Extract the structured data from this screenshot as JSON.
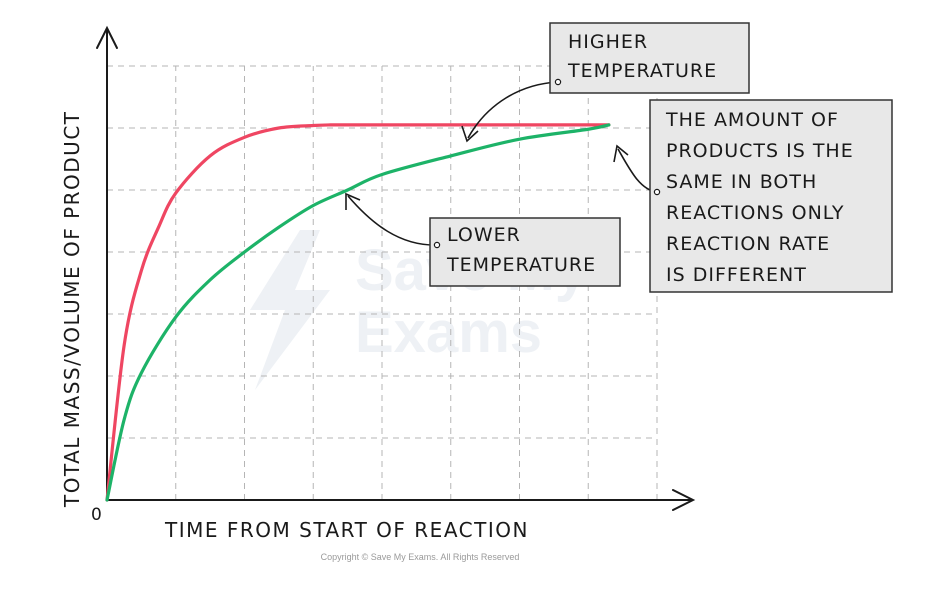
{
  "chart_data": {
    "type": "line",
    "title": "",
    "xlabel": "TIME FROM START OF REACTION",
    "ylabel": "TOTAL MASS/VOLUME OF PRODUCT",
    "origin_label": "0",
    "xlim": [
      0,
      8
    ],
    "ylim": [
      0,
      7
    ],
    "grid": true,
    "series": [
      {
        "color": "#ef4662",
        "x": [
          0,
          0.25,
          0.5,
          0.75,
          1,
          1.5,
          2,
          2.5,
          3,
          3.25,
          3.5,
          4,
          5,
          6,
          7.3
        ],
        "y": [
          0,
          2.5,
          3.7,
          4.4,
          4.95,
          5.55,
          5.85,
          6.0,
          6.04,
          6.05,
          6.05,
          6.05,
          6.05,
          6.05,
          6.05
        ]
      },
      {
        "color": "#1db368",
        "x": [
          0,
          0.25,
          0.5,
          1,
          1.5,
          2,
          2.5,
          3,
          3.5,
          4,
          5,
          6,
          7,
          7.3
        ],
        "y": [
          0,
          1.3,
          2.05,
          2.95,
          3.55,
          4.0,
          4.4,
          4.75,
          5.0,
          5.25,
          5.55,
          5.82,
          5.98,
          6.05
        ]
      }
    ],
    "annotations": [
      {
        "text": [
          "HIGHER",
          "TEMPERATURE"
        ],
        "points_to": {
          "series": 0,
          "x": 5.2,
          "y": 6.05
        }
      },
      {
        "text": [
          "LOWER",
          "TEMPERATURE"
        ],
        "points_to": {
          "series": 1,
          "x": 3.45,
          "y": 4.98
        }
      },
      {
        "text": [
          "THE AMOUNT OF",
          "PRODUCTS IS THE",
          "SAME IN BOTH",
          "REACTIONS ONLY",
          "REACTION RATE",
          "IS DIFFERENT"
        ],
        "points_to": {
          "series": 1,
          "x": 7.3,
          "y": 6.05
        }
      }
    ]
  },
  "watermark": [
    "Save My",
    "Exams"
  ],
  "copyright": "Copyright © Save My Exams. All Rights Reserved",
  "colors": {
    "axis": "#1a1a1a",
    "grid": "#b5b5b5",
    "callout_fill": "#e8e8e8",
    "callout_border": "#333333"
  }
}
